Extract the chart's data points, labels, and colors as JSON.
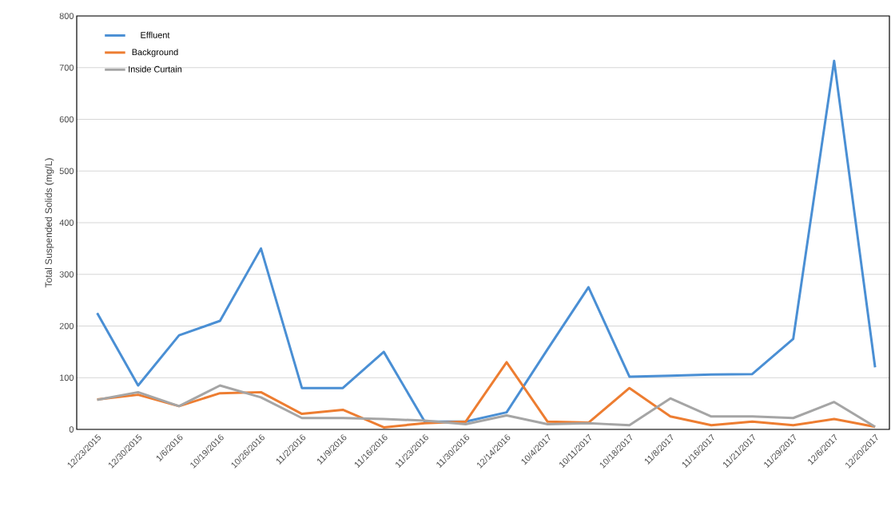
{
  "chart_data": {
    "type": "line",
    "ylabel": "Total Suspended Solids (mg/L)",
    "categories": [
      "12/23/2015",
      "12/30/2015",
      "1/6/2016",
      "10/19/2016",
      "10/26/2016",
      "11/2/2016",
      "11/9/2016",
      "11/16/2016",
      "11/23/2016",
      "11/30/2016",
      "12/14/2016",
      "10/4/2017",
      "10/11/2017",
      "10/18/2017",
      "11/8/2017",
      "11/16/2017",
      "11/21/2017",
      "11/29/2017",
      "12/6/2017",
      "12/20/2017"
    ],
    "series": [
      {
        "name": "Effluent",
        "color": "#4a8fd4",
        "values": [
          225,
          85,
          182,
          210,
          350,
          80,
          80,
          150,
          15,
          15,
          33,
          155,
          275,
          102,
          104,
          106,
          107,
          175,
          713,
          120
        ]
      },
      {
        "name": "Background",
        "color": "#ed7d31",
        "values": [
          58,
          67,
          45,
          70,
          72,
          30,
          38,
          4,
          12,
          15,
          130,
          15,
          13,
          80,
          25,
          8,
          15,
          8,
          20,
          5
        ]
      },
      {
        "name": "Inside Curtain",
        "color": "#a5a5a5",
        "values": [
          57,
          72,
          45,
          85,
          62,
          22,
          22,
          20,
          17,
          10,
          27,
          10,
          12,
          8,
          60,
          25,
          25,
          22,
          53,
          5
        ]
      }
    ],
    "ylim": [
      0,
      800
    ],
    "yticks": [
      0,
      100,
      200,
      300,
      400,
      500,
      600,
      700,
      800
    ],
    "grid": "y",
    "legend": "top left",
    "marker": "none",
    "line_style": "solid"
  }
}
